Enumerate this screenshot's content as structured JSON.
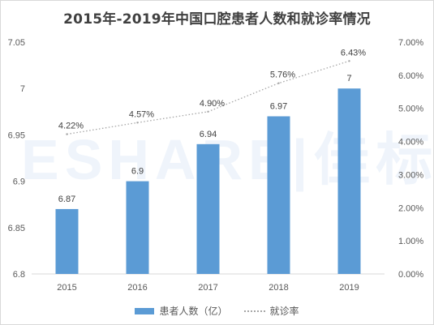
{
  "chart_data": {
    "type": "bar",
    "title": "2015年-2019年中国口腔患者人数和就诊率情况",
    "categories": [
      "2015",
      "2016",
      "2017",
      "2018",
      "2019"
    ],
    "series": [
      {
        "name": "患者人数（亿）",
        "type": "bar",
        "axis": "left",
        "values": [
          6.87,
          6.9,
          6.94,
          6.97,
          7
        ],
        "labels": [
          "6.87",
          "6.9",
          "6.94",
          "6.97",
          "7"
        ],
        "color": "#5b9bd5"
      },
      {
        "name": "就诊率",
        "type": "line",
        "axis": "right",
        "values": [
          4.22,
          4.57,
          4.9,
          5.76,
          6.43
        ],
        "labels": [
          "4.22%",
          "4.57%",
          "4.90%",
          "5.76%",
          "6.43%"
        ],
        "color": "#a6a6a6"
      }
    ],
    "y_left": {
      "min": 6.8,
      "max": 7.05,
      "ticks": [
        6.8,
        6.85,
        6.9,
        6.95,
        7,
        7.05
      ],
      "tick_labels": [
        "6.8",
        "6.85",
        "6.9",
        "6.95",
        "7",
        "7.05"
      ]
    },
    "y_right": {
      "min": 0,
      "max": 7,
      "ticks": [
        0,
        1,
        2,
        3,
        4,
        5,
        6,
        7
      ],
      "tick_labels": [
        "0.00%",
        "1.00%",
        "2.00%",
        "3.00%",
        "4.00%",
        "5.00%",
        "6.00%",
        "7.00%"
      ]
    },
    "grid": false,
    "legend_position": "bottom",
    "watermark": "ESHARE|佳标汇"
  }
}
